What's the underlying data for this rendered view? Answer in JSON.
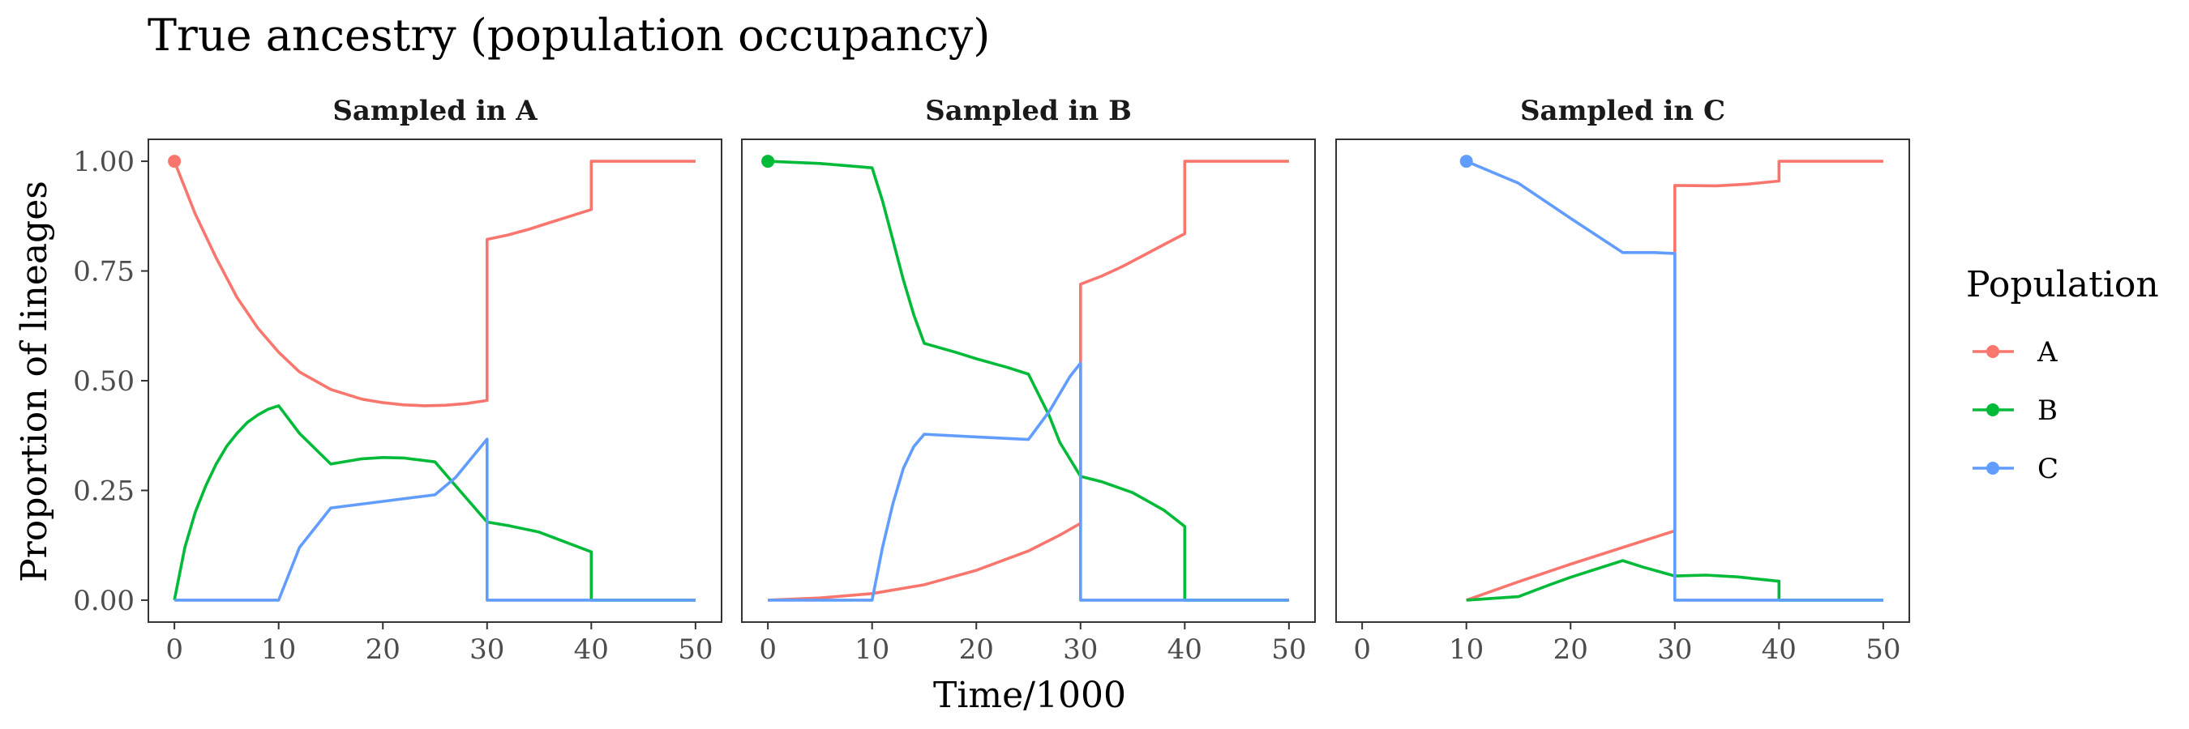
{
  "chart_data": {
    "type": "line",
    "title": "True ancestry (population occupancy)",
    "xlabel": "Time/1000",
    "ylabel": "Proportion of lineages",
    "xlim": [
      -2.5,
      52.5
    ],
    "ylim": [
      -0.05,
      1.05
    ],
    "x_ticks": [
      0,
      10,
      20,
      30,
      40,
      50
    ],
    "x_tick_labels": [
      "0",
      "10",
      "20",
      "30",
      "40",
      "50"
    ],
    "y_ticks": [
      0,
      0.25,
      0.5,
      0.75,
      1
    ],
    "y_tick_labels": [
      "0.00",
      "0.25",
      "0.50",
      "0.75",
      "1.00"
    ],
    "grid": false,
    "legend": {
      "title": "Population",
      "placement": "right",
      "entries": [
        {
          "name": "A",
          "color": "#F8766D"
        },
        {
          "name": "B",
          "color": "#00BA38"
        },
        {
          "name": "C",
          "color": "#619CFF"
        }
      ]
    },
    "panels": [
      {
        "strip": "Sampled in A",
        "start_point": {
          "x": 0,
          "y": 1.0,
          "series": "A"
        },
        "series": [
          {
            "name": "A",
            "points": [
              [
                0,
                1.0
              ],
              [
                2,
                0.88
              ],
              [
                4,
                0.78
              ],
              [
                6,
                0.69
              ],
              [
                8,
                0.62
              ],
              [
                10,
                0.565
              ],
              [
                12,
                0.52
              ],
              [
                15,
                0.48
              ],
              [
                18,
                0.458
              ],
              [
                20,
                0.45
              ],
              [
                22,
                0.445
              ],
              [
                24,
                0.443
              ],
              [
                26,
                0.444
              ],
              [
                28,
                0.448
              ],
              [
                30,
                0.455
              ],
              [
                30,
                0.822
              ],
              [
                32,
                0.832
              ],
              [
                34,
                0.845
              ],
              [
                36,
                0.86
              ],
              [
                38,
                0.875
              ],
              [
                40,
                0.89
              ],
              [
                40,
                1.0
              ],
              [
                50,
                1.0
              ]
            ]
          },
          {
            "name": "B",
            "points": [
              [
                0,
                0
              ],
              [
                1,
                0.12
              ],
              [
                2,
                0.2
              ],
              [
                3,
                0.26
              ],
              [
                4,
                0.31
              ],
              [
                5,
                0.35
              ],
              [
                6,
                0.38
              ],
              [
                7,
                0.405
              ],
              [
                8,
                0.422
              ],
              [
                9,
                0.435
              ],
              [
                10,
                0.443
              ],
              [
                12,
                0.38
              ],
              [
                15,
                0.31
              ],
              [
                18,
                0.322
              ],
              [
                20,
                0.325
              ],
              [
                22,
                0.324
              ],
              [
                25,
                0.315
              ],
              [
                27,
                0.26
              ],
              [
                30,
                0.178
              ],
              [
                32,
                0.17
              ],
              [
                35,
                0.155
              ],
              [
                38,
                0.128
              ],
              [
                40,
                0.11
              ],
              [
                40,
                0
              ],
              [
                50,
                0
              ]
            ]
          },
          {
            "name": "C",
            "points": [
              [
                0,
                0
              ],
              [
                10,
                0
              ],
              [
                12,
                0.12
              ],
              [
                15,
                0.21
              ],
              [
                20,
                0.225
              ],
              [
                25,
                0.24
              ],
              [
                27,
                0.28
              ],
              [
                30,
                0.367
              ],
              [
                30,
                0
              ],
              [
                50,
                0
              ]
            ]
          }
        ]
      },
      {
        "strip": "Sampled in B",
        "start_point": {
          "x": 0,
          "y": 1.0,
          "series": "B"
        },
        "series": [
          {
            "name": "A",
            "points": [
              [
                0,
                0
              ],
              [
                5,
                0.005
              ],
              [
                10,
                0.015
              ],
              [
                15,
                0.035
              ],
              [
                20,
                0.068
              ],
              [
                25,
                0.112
              ],
              [
                28,
                0.148
              ],
              [
                30,
                0.175
              ],
              [
                30,
                0.72
              ],
              [
                32,
                0.738
              ],
              [
                34,
                0.76
              ],
              [
                36,
                0.785
              ],
              [
                38,
                0.81
              ],
              [
                40,
                0.835
              ],
              [
                40,
                1.0
              ],
              [
                50,
                1.0
              ]
            ]
          },
          {
            "name": "B",
            "points": [
              [
                0,
                1.0
              ],
              [
                5,
                0.995
              ],
              [
                10,
                0.985
              ],
              [
                11,
                0.91
              ],
              [
                12,
                0.82
              ],
              [
                13,
                0.73
              ],
              [
                14,
                0.65
              ],
              [
                15,
                0.585
              ],
              [
                18,
                0.565
              ],
              [
                20,
                0.55
              ],
              [
                23,
                0.53
              ],
              [
                25,
                0.515
              ],
              [
                27,
                0.42
              ],
              [
                28,
                0.36
              ],
              [
                30,
                0.282
              ],
              [
                32,
                0.27
              ],
              [
                35,
                0.245
              ],
              [
                38,
                0.205
              ],
              [
                40,
                0.168
              ],
              [
                40,
                0
              ],
              [
                50,
                0
              ]
            ]
          },
          {
            "name": "C",
            "points": [
              [
                0,
                0
              ],
              [
                10,
                0
              ],
              [
                11,
                0.12
              ],
              [
                12,
                0.22
              ],
              [
                13,
                0.3
              ],
              [
                14,
                0.35
              ],
              [
                15,
                0.378
              ],
              [
                20,
                0.372
              ],
              [
                25,
                0.366
              ],
              [
                27,
                0.43
              ],
              [
                29,
                0.51
              ],
              [
                30,
                0.54
              ],
              [
                30,
                0
              ],
              [
                50,
                0
              ]
            ]
          }
        ]
      },
      {
        "strip": "Sampled in C",
        "start_point": {
          "x": 10,
          "y": 1.0,
          "series": "C"
        },
        "series": [
          {
            "name": "A",
            "points": [
              [
                10,
                0
              ],
              [
                15,
                0.042
              ],
              [
                20,
                0.082
              ],
              [
                25,
                0.12
              ],
              [
                30,
                0.158
              ],
              [
                30,
                0.945
              ],
              [
                34,
                0.944
              ],
              [
                37,
                0.948
              ],
              [
                40,
                0.955
              ],
              [
                40,
                1.0
              ],
              [
                50,
                1.0
              ]
            ]
          },
          {
            "name": "B",
            "points": [
              [
                10,
                0
              ],
              [
                15,
                0.008
              ],
              [
                18,
                0.035
              ],
              [
                20,
                0.052
              ],
              [
                25,
                0.09
              ],
              [
                27,
                0.075
              ],
              [
                30,
                0.055
              ],
              [
                33,
                0.057
              ],
              [
                36,
                0.053
              ],
              [
                40,
                0.043
              ],
              [
                40,
                0
              ],
              [
                50,
                0
              ]
            ]
          },
          {
            "name": "C",
            "points": [
              [
                10,
                1.0
              ],
              [
                15,
                0.95
              ],
              [
                20,
                0.87
              ],
              [
                25,
                0.792
              ],
              [
                28,
                0.792
              ],
              [
                30,
                0.79
              ],
              [
                30,
                0
              ],
              [
                50,
                0
              ]
            ]
          }
        ]
      }
    ]
  }
}
